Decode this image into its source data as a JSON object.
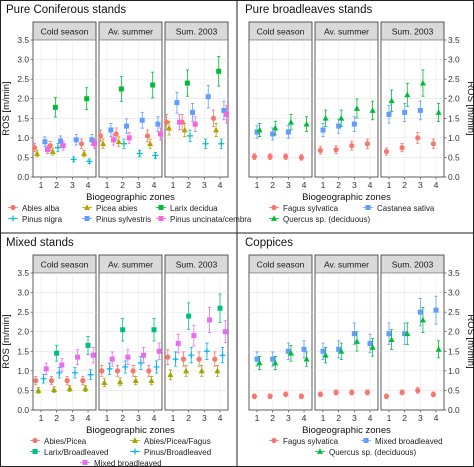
{
  "figure": {
    "xlabel": "Biogeographic zones",
    "ylabel": "ROS [m/min]",
    "periods": [
      "Cold season",
      "Av. summer",
      "Sum. 2003"
    ],
    "zones": [
      "1",
      "2",
      "3",
      "4"
    ],
    "yticks": [
      "0.0",
      "0.5",
      "1.0",
      "1.5",
      "2.0",
      "2.5",
      "3.0",
      "3.5"
    ]
  },
  "chart_data": [
    {
      "type": "scatter",
      "title": "Pure Coniferous stands",
      "xlabel": "Biogeographic zones",
      "ylabel": "ROS [m/min]",
      "ylim": [
        0,
        3.5
      ],
      "grid": true,
      "facets": [
        "Cold season",
        "Av. summer",
        "Sum. 2003"
      ],
      "legend_position": "bottom",
      "series": [
        {
          "name": "Abies alba",
          "color": "#F8766D",
          "marker": "circle",
          "values": [
            [
              0.75,
              0.8,
              null,
              0.85
            ],
            [
              1.05,
              1.1,
              null,
              1.05
            ],
            [
              1.4,
              1.4,
              null,
              1.5
            ]
          ]
        },
        {
          "name": "Picea abies",
          "color": "#B79F00",
          "marker": "triangle",
          "values": [
            [
              0.6,
              0.65,
              null,
              0.6
            ],
            [
              0.85,
              0.9,
              null,
              0.85
            ],
            [
              1.25,
              1.2,
              null,
              1.2
            ]
          ]
        },
        {
          "name": "Larix decidua",
          "color": "#00BA38",
          "marker": "square",
          "values": [
            [
              null,
              1.78,
              null,
              2.0
            ],
            [
              null,
              2.25,
              null,
              2.35
            ],
            [
              null,
              2.4,
              null,
              2.7
            ]
          ]
        },
        {
          "name": "Pinus nigra",
          "color": "#00BFC4",
          "marker": "plus",
          "values": [
            [
              null,
              0.75,
              0.45,
              0.4
            ],
            [
              null,
              0.85,
              0.6,
              0.55
            ],
            [
              null,
              1.05,
              0.85,
              0.85
            ]
          ]
        },
        {
          "name": "Pinus sylvestris",
          "color": "#619CFF",
          "marker": "square",
          "values": [
            [
              0.9,
              0.92,
              0.95,
              0.95
            ],
            [
              1.2,
              1.3,
              1.45,
              1.35
            ],
            [
              1.9,
              1.65,
              2.05,
              1.7
            ]
          ]
        },
        {
          "name": "Pinus uncinata/cembra",
          "color": "#F564E3",
          "marker": "square",
          "values": [
            [
              0.7,
              0.8,
              null,
              0.85
            ],
            [
              0.95,
              1.0,
              null,
              1.1
            ],
            [
              1.4,
              1.35,
              null,
              1.6
            ]
          ]
        }
      ]
    },
    {
      "type": "scatter",
      "title": "Pure broadleaves stands",
      "xlabel": "Biogeographic zones",
      "ylabel": "ROS [m/min]",
      "ylim": [
        0,
        3.5
      ],
      "grid": true,
      "facets": [
        "Cold season",
        "Av. summer",
        "Sum. 2003"
      ],
      "legend_position": "bottom",
      "series": [
        {
          "name": "Fagus sylvatica",
          "color": "#F8766D",
          "marker": "circle",
          "values": [
            [
              0.52,
              0.52,
              0.52,
              0.5
            ],
            [
              0.68,
              0.7,
              0.8,
              0.85
            ],
            [
              0.65,
              0.75,
              1.0,
              0.85
            ]
          ]
        },
        {
          "name": "Castanea sativa",
          "color": "#619CFF",
          "marker": "square",
          "values": [
            [
              1.15,
              1.1,
              1.15,
              null
            ],
            [
              1.2,
              1.3,
              1.35,
              null
            ],
            [
              1.6,
              1.65,
              1.7,
              null
            ]
          ]
        },
        {
          "name": "Quercus sp. (deciduous)",
          "color": "#00BA38",
          "marker": "triangle",
          "values": [
            [
              1.2,
              1.25,
              1.4,
              1.35
            ],
            [
              1.5,
              1.5,
              1.75,
              1.7
            ],
            [
              1.95,
              2.1,
              2.4,
              1.65
            ]
          ]
        }
      ]
    },
    {
      "type": "scatter",
      "title": "Mixed stands",
      "xlabel": "Biogeographic zones",
      "ylabel": "ROS [m/min]",
      "ylim": [
        0,
        3.5
      ],
      "grid": true,
      "facets": [
        "Cold season",
        "Av. summer",
        "Sum. 2003"
      ],
      "legend_position": "bottom",
      "series": [
        {
          "name": "Abies/Picea",
          "color": "#F8766D",
          "marker": "circle",
          "values": [
            [
              0.75,
              0.75,
              0.75,
              0.75
            ],
            [
              1.0,
              1.0,
              1.0,
              1.0
            ],
            [
              1.35,
              1.3,
              1.3,
              1.3
            ]
          ]
        },
        {
          "name": "Abies/Picea/Fagus",
          "color": "#A3A500",
          "marker": "triangle",
          "values": [
            [
              0.5,
              0.52,
              0.55,
              0.55
            ],
            [
              0.7,
              0.72,
              0.75,
              0.75
            ],
            [
              0.9,
              1.0,
              1.0,
              1.0
            ]
          ]
        },
        {
          "name": "Larix/Broadleaved",
          "color": "#00BF7D",
          "marker": "square",
          "values": [
            [
              null,
              1.45,
              null,
              1.65
            ],
            [
              null,
              2.05,
              null,
              2.05
            ],
            [
              null,
              2.4,
              null,
              2.6
            ]
          ]
        },
        {
          "name": "Pinus/Broadleaved",
          "color": "#00B0F6",
          "marker": "plus",
          "values": [
            [
              0.8,
              0.95,
              0.95,
              0.9
            ],
            [
              1.05,
              1.1,
              1.2,
              1.1
            ],
            [
              1.3,
              1.4,
              1.5,
              1.4
            ]
          ]
        },
        {
          "name": "Mixed broadleaved",
          "color": "#E76BF3",
          "marker": "square",
          "values": [
            [
              1.05,
              1.15,
              1.35,
              1.4
            ],
            [
              1.3,
              1.35,
              1.4,
              1.5
            ],
            [
              1.7,
              1.9,
              2.3,
              2.0
            ]
          ]
        }
      ]
    },
    {
      "type": "scatter",
      "title": "Coppices",
      "xlabel": "Biogeographic zones",
      "ylabel": "ROS [m/min]",
      "ylim": [
        0,
        3.5
      ],
      "grid": true,
      "facets": [
        "Cold season",
        "Av. summer",
        "Sum. 2003"
      ],
      "legend_position": "bottom",
      "series": [
        {
          "name": "Fagus sylvatica",
          "color": "#F8766D",
          "marker": "circle",
          "values": [
            [
              0.35,
              0.35,
              0.4,
              0.35
            ],
            [
              0.4,
              0.45,
              0.45,
              0.45
            ],
            [
              0.35,
              0.45,
              0.5,
              0.4
            ]
          ]
        },
        {
          "name": "Mixed broadleaved",
          "color": "#619CFF",
          "marker": "square",
          "values": [
            [
              1.3,
              1.3,
              1.5,
              1.55
            ],
            [
              1.5,
              1.55,
              1.95,
              1.7
            ],
            [
              1.95,
              1.95,
              2.5,
              2.55
            ]
          ]
        },
        {
          "name": "Quercus sp. (deciduous)",
          "color": "#00BA38",
          "marker": "triangle",
          "values": [
            [
              1.2,
              1.2,
              1.45,
              1.3
            ],
            [
              1.4,
              1.5,
              1.75,
              1.6
            ],
            [
              1.8,
              1.95,
              2.3,
              1.55
            ]
          ]
        }
      ]
    }
  ]
}
